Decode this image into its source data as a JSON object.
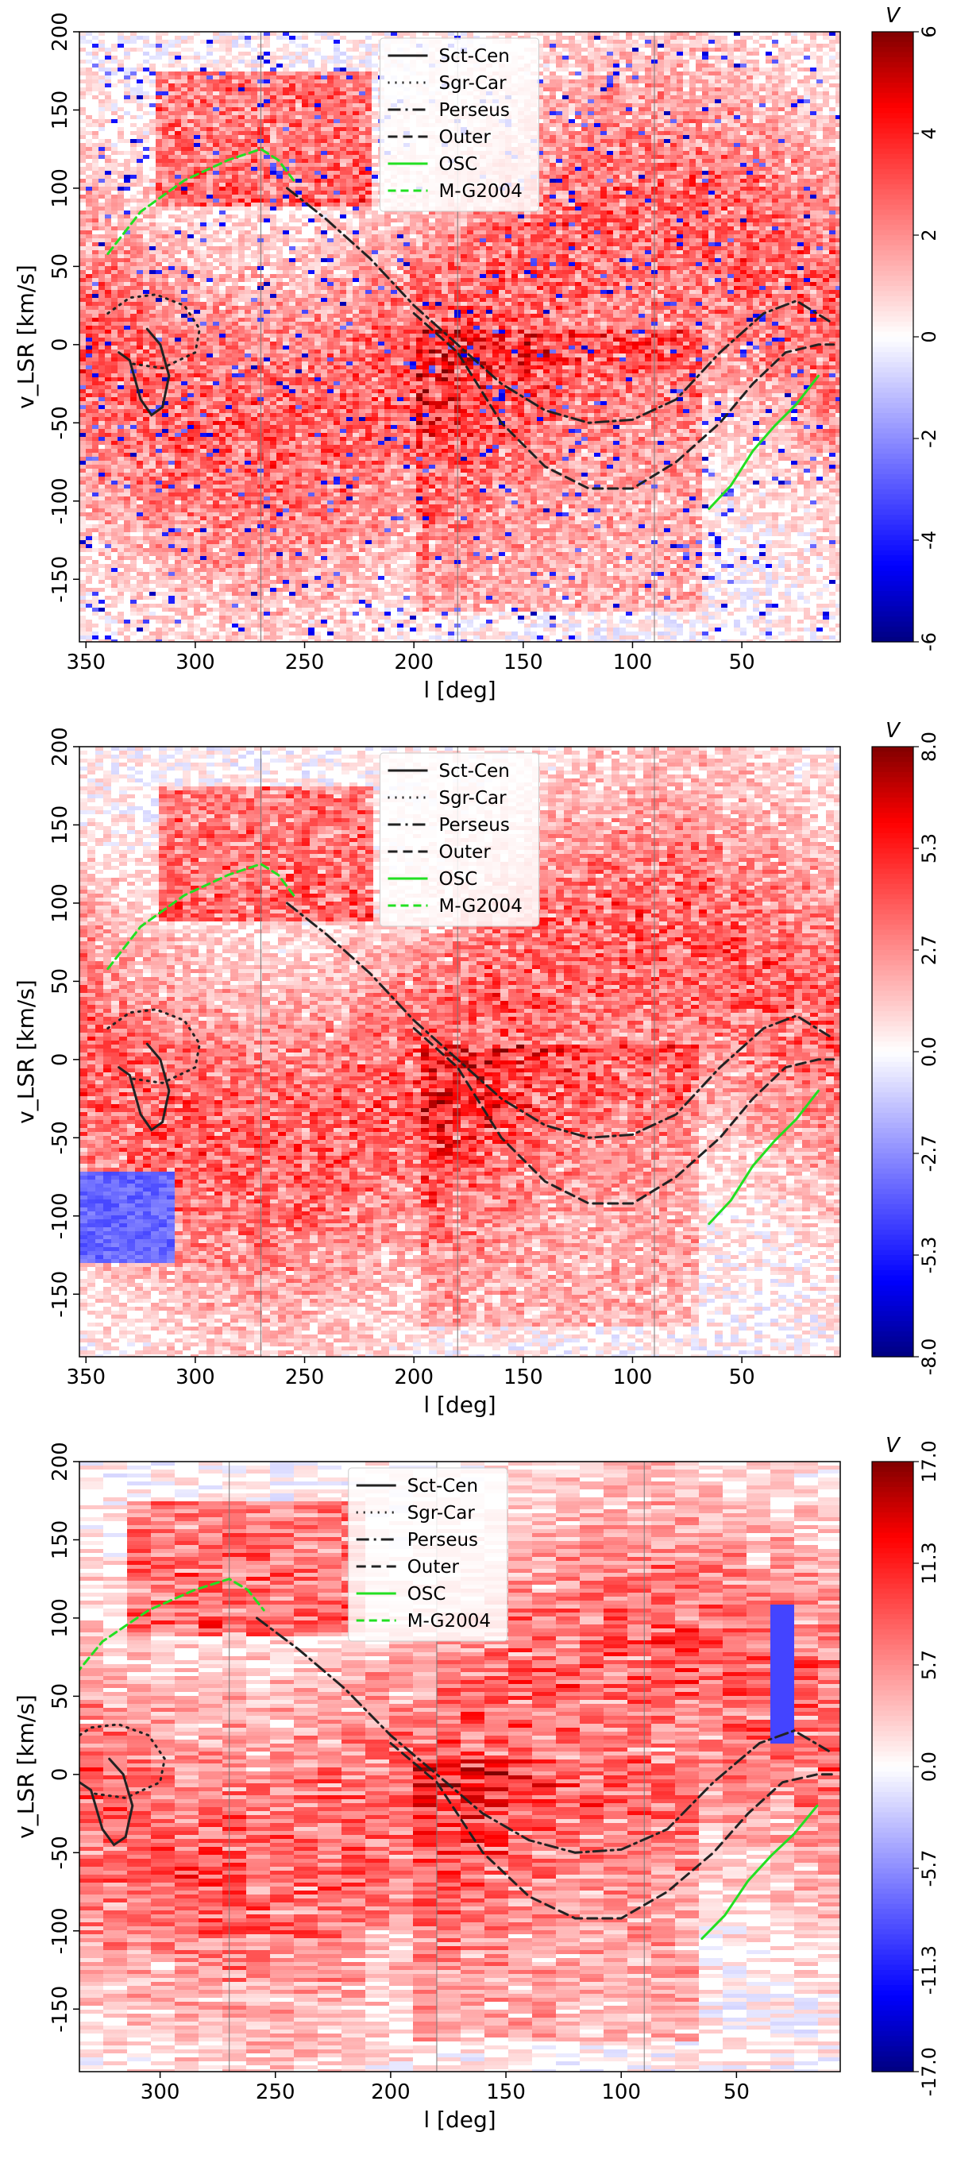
{
  "chart_data": [
    {
      "type": "heatmap",
      "xlabel": "l [deg]",
      "ylabel": "v_LSR [km/s]",
      "xlim": [
        353,
        5
      ],
      "ylim": [
        -190,
        200
      ],
      "xticks": [
        350,
        300,
        250,
        200,
        150,
        100,
        50
      ],
      "yticks": [
        -150,
        -100,
        -50,
        0,
        50,
        100,
        150,
        200
      ],
      "vlines": [
        270,
        180,
        90
      ],
      "colorbar": {
        "label": "V",
        "min": -6,
        "max": 6,
        "ticks": [
          -6,
          -4,
          -2,
          0,
          2,
          4,
          6
        ]
      },
      "legend": [
        "Sct-Cen",
        "Sgr-Car",
        "Perseus",
        "Outer",
        "OSC",
        "M-G2004"
      ]
    },
    {
      "type": "heatmap",
      "xlabel": "l [deg]",
      "ylabel": "v_LSR [km/s]",
      "xlim": [
        353,
        5
      ],
      "ylim": [
        -190,
        200
      ],
      "xticks": [
        350,
        300,
        250,
        200,
        150,
        100,
        50
      ],
      "yticks": [
        -150,
        -100,
        -50,
        0,
        50,
        100,
        150,
        200
      ],
      "vlines": [
        270,
        180,
        90
      ],
      "colorbar": {
        "label": "V",
        "min": -8.0,
        "max": 8.0,
        "ticks": [
          "-8.0",
          "-5.3",
          "-2.7",
          "0.0",
          "2.7",
          "5.3",
          "8.0"
        ]
      },
      "legend": [
        "Sct-Cen",
        "Sgr-Car",
        "Perseus",
        "Outer",
        "OSC",
        "M-G2004"
      ]
    },
    {
      "type": "heatmap",
      "xlabel": "l [deg]",
      "ylabel": "v_LSR [km/s]",
      "xlim": [
        335,
        5
      ],
      "ylim": [
        -190,
        200
      ],
      "xticks": [
        300,
        250,
        200,
        150,
        100,
        50
      ],
      "yticks": [
        -150,
        -100,
        -50,
        0,
        50,
        100,
        150,
        200
      ],
      "vlines": [
        270,
        180,
        90
      ],
      "colorbar": {
        "label": "V",
        "min": -17.0,
        "max": 17.0,
        "ticks": [
          "-17.0",
          "-11.3",
          "-5.7",
          "0.0",
          "5.7",
          "11.3",
          "17.0"
        ]
      },
      "legend": [
        "Sct-Cen",
        "Sgr-Car",
        "Perseus",
        "Outer",
        "OSC",
        "M-G2004"
      ]
    }
  ],
  "curves": {
    "sct_cen": [
      [
        335,
        -5
      ],
      [
        330,
        -10
      ],
      [
        325,
        -35
      ],
      [
        320,
        -45
      ],
      [
        315,
        -40
      ],
      [
        312,
        -20
      ],
      [
        316,
        0
      ],
      [
        322,
        10
      ]
    ],
    "sgr_car": [
      [
        340,
        20
      ],
      [
        330,
        30
      ],
      [
        318,
        32
      ],
      [
        305,
        25
      ],
      [
        298,
        10
      ],
      [
        300,
        -5
      ],
      [
        315,
        -15
      ],
      [
        330,
        -12
      ]
    ],
    "perseus": [
      [
        258,
        100
      ],
      [
        240,
        80
      ],
      [
        220,
        55
      ],
      [
        200,
        25
      ],
      [
        180,
        0
      ],
      [
        160,
        -25
      ],
      [
        140,
        -42
      ],
      [
        120,
        -50
      ],
      [
        100,
        -48
      ],
      [
        80,
        -35
      ],
      [
        60,
        -5
      ],
      [
        40,
        20
      ],
      [
        25,
        28
      ],
      [
        10,
        15
      ]
    ],
    "outer": [
      [
        200,
        20
      ],
      [
        180,
        -5
      ],
      [
        160,
        -50
      ],
      [
        140,
        -78
      ],
      [
        120,
        -92
      ],
      [
        100,
        -92
      ],
      [
        80,
        -75
      ],
      [
        60,
        -50
      ],
      [
        45,
        -25
      ],
      [
        30,
        -5
      ],
      [
        15,
        0
      ],
      [
        8,
        0
      ]
    ],
    "osc": [
      [
        65,
        -105
      ],
      [
        55,
        -90
      ],
      [
        45,
        -68
      ],
      [
        35,
        -52
      ],
      [
        25,
        -38
      ],
      [
        15,
        -20
      ]
    ],
    "mg2004": [
      [
        340,
        58
      ],
      [
        325,
        85
      ],
      [
        305,
        105
      ],
      [
        285,
        118
      ],
      [
        270,
        125
      ],
      [
        262,
        118
      ],
      [
        255,
        105
      ]
    ]
  }
}
